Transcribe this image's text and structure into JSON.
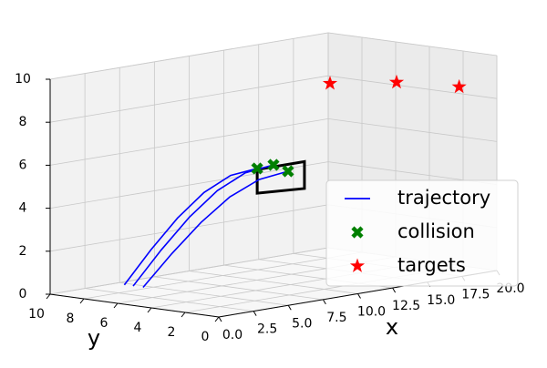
{
  "chart_data": {
    "type": "scatter3d",
    "xlabel": "x",
    "ylabel": "y",
    "xlim": [
      0,
      20
    ],
    "ylim": [
      0,
      10
    ],
    "zlim": [
      0,
      10
    ],
    "xticks": [
      {
        "value": 0,
        "label": "0.0"
      },
      2.5,
      {
        "value": 5,
        "label": "5.0"
      },
      7.5,
      {
        "value": 10,
        "label": "10.0"
      },
      12.5,
      {
        "value": 15,
        "label": "15.0"
      },
      17.5,
      {
        "value": 20,
        "label": "20.0"
      }
    ],
    "yticks": [
      0,
      2,
      4,
      6,
      8,
      10
    ],
    "zticks": [
      0,
      2,
      4,
      6,
      8,
      10
    ],
    "grid": true,
    "legend": "lower right",
    "obstacle": {
      "color": "#000000",
      "x": [
        6.4,
        9.8,
        9.8,
        6.4,
        6.4
      ],
      "y": [
        3,
        3,
        3,
        3,
        3
      ],
      "z": [
        5.85,
        5.85,
        4.6,
        4.75,
        5.85
      ]
    },
    "series": [
      {
        "name": "trajectory",
        "color": "#0000ff",
        "marker": "line",
        "lines": [
          {
            "x": [
              0,
              1.28,
              2.56,
              3.84,
              5.12,
              6.4
            ],
            "y": [
              5.6,
              5.08,
              4.56,
              4.04,
              3.52,
              3
            ],
            "z": [
              0.9,
              2.45,
              3.84,
              4.95,
              5.66,
              5.9
            ]
          },
          {
            "x": [
              0,
              1.51,
              3.03,
              4.54,
              6.06,
              7.57
            ],
            "y": [
              5.08,
              4.66,
              4.25,
              3.83,
              3.42,
              3
            ],
            "z": [
              0.9,
              2.46,
              3.86,
              4.98,
              5.69,
              5.94
            ]
          },
          {
            "x": [
              0,
              1.72,
              3.45,
              5.17,
              6.9,
              8.62
            ],
            "y": [
              4.49,
              4.19,
              3.89,
              3.6,
              3.3,
              3
            ],
            "z": [
              0.9,
              2.33,
              3.62,
              4.65,
              5.3,
              5.53
            ]
          }
        ]
      },
      {
        "name": "collision",
        "color": "#008000",
        "marker": "x",
        "x": [
          6.4,
          7.57,
          8.62
        ],
        "y": [
          3,
          3,
          3
        ],
        "z": [
          5.9,
          5.94,
          5.53
        ]
      },
      {
        "name": "targets",
        "color": "#ff0000",
        "marker": "star",
        "x": [
          8,
          14,
          18.5
        ],
        "y": [
          0,
          1,
          1
        ],
        "z": [
          10,
          9.3,
          8.6
        ]
      }
    ]
  }
}
